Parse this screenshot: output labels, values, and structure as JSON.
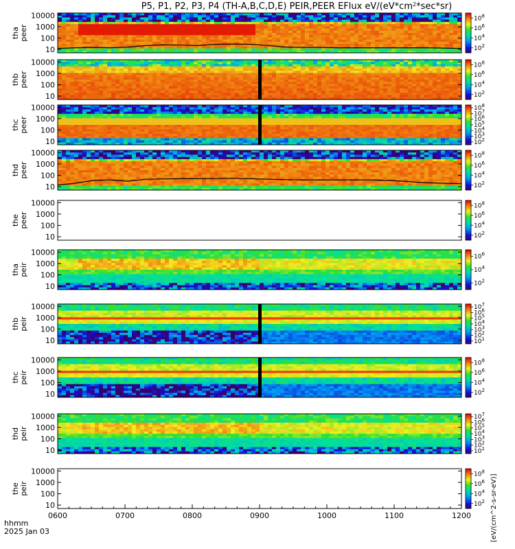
{
  "title": "P5, P1, P2, P3, P4 (TH-A,B,C,D,E) PEIR,PEER EFlux eV/(eV*cm^2*sec*sr)",
  "title_parts": {
    "pre": "P5, P1, P2, P3, P4 (TH-A,B,C,D,E) PEIR,PEER EFlux eV/(eV*cm",
    "sup": "2",
    "post": "*sec*sr)"
  },
  "corner_label": {
    "line1": "hhmm",
    "line2": "2025 Jan 03"
  },
  "colorbar_side_label": "[eV/(cm^2-s-sr-eV)]",
  "colors": {
    "line": "#000000",
    "background": "#ffffff"
  },
  "chart_data": {
    "type": "heatmap",
    "x_axis": {
      "ticks": [
        "0600",
        "0700",
        "0800",
        "0900",
        "1000",
        "1100",
        "1200"
      ],
      "range": [
        "0600",
        "1200"
      ]
    },
    "y_axis": {
      "scale": "log",
      "ticks": [
        "10",
        "100",
        "1000",
        "10000"
      ],
      "unit": "eV"
    },
    "panels": [
      {
        "probe": "tha",
        "species": "peer",
        "cb_ticks": [
          [
            "10",
            "2"
          ],
          [
            "10",
            "4"
          ],
          [
            "10",
            "6"
          ],
          [
            "10",
            "8"
          ]
        ],
        "profile": "tha_e",
        "line": [
          12,
          14,
          15,
          14,
          16,
          22,
          25,
          24,
          22,
          28,
          30,
          28,
          22,
          16,
          15,
          15,
          14,
          14,
          14,
          14,
          14,
          14,
          13,
          12
        ]
      },
      {
        "probe": "thb",
        "species": "peer",
        "cb_ticks": [
          [
            "10",
            "2"
          ],
          [
            "10",
            "4"
          ],
          [
            "10",
            "6"
          ],
          [
            "10",
            "8"
          ]
        ],
        "profile": "thb_e",
        "gap": "0900"
      },
      {
        "probe": "thc",
        "species": "peer",
        "cb_ticks": [
          [
            "10",
            "2"
          ],
          [
            "10",
            "3"
          ],
          [
            "10",
            "4"
          ],
          [
            "10",
            "5"
          ],
          [
            "10",
            "6"
          ],
          [
            "10",
            "7"
          ],
          [
            "10",
            "8"
          ]
        ],
        "profile": "thc_e",
        "gap": "0900"
      },
      {
        "probe": "thd",
        "species": "peer",
        "cb_ticks": [
          [
            "10",
            "2"
          ],
          [
            "10",
            "4"
          ],
          [
            "10",
            "6"
          ],
          [
            "10",
            "8"
          ]
        ],
        "profile": "thd_e",
        "line": [
          14,
          20,
          35,
          40,
          30,
          45,
          48,
          50,
          50,
          52,
          55,
          50,
          45,
          42,
          40,
          40,
          40,
          40,
          38,
          35,
          28,
          22,
          20,
          18
        ]
      },
      {
        "probe": "the",
        "species": "peer",
        "cb_ticks": [
          [
            "10",
            "2"
          ],
          [
            "10",
            "4"
          ],
          [
            "10",
            "6"
          ],
          [
            "10",
            "8"
          ]
        ],
        "profile": "empty"
      },
      {
        "probe": "tha",
        "species": "peir",
        "cb_ticks": [
          [
            "10",
            "2"
          ],
          [
            "10",
            "4"
          ],
          [
            "10",
            "6"
          ]
        ],
        "profile": "tha_i"
      },
      {
        "probe": "thb",
        "species": "peir",
        "cb_ticks": [
          [
            "10",
            "1"
          ],
          [
            "10",
            "2"
          ],
          [
            "10",
            "3"
          ],
          [
            "10",
            "4"
          ],
          [
            "10",
            "5"
          ],
          [
            "10",
            "6"
          ],
          [
            "10",
            "7"
          ]
        ],
        "profile": "thb_i",
        "gap": "0900"
      },
      {
        "probe": "thc",
        "species": "peir",
        "cb_ticks": [
          [
            "10",
            "2"
          ],
          [
            "10",
            "4"
          ],
          [
            "10",
            "6"
          ],
          [
            "10",
            "8"
          ]
        ],
        "profile": "thc_i",
        "gap": "0900"
      },
      {
        "probe": "thd",
        "species": "peir",
        "cb_ticks": [
          [
            "10",
            "1"
          ],
          [
            "10",
            "2"
          ],
          [
            "10",
            "3"
          ],
          [
            "10",
            "4"
          ],
          [
            "10",
            "5"
          ],
          [
            "10",
            "6"
          ],
          [
            "10",
            "7"
          ]
        ],
        "profile": "thd_i"
      },
      {
        "probe": "the",
        "species": "peir",
        "cb_ticks": [
          [
            "10",
            "2"
          ],
          [
            "10",
            "4"
          ],
          [
            "10",
            "6"
          ],
          [
            "10",
            "8"
          ]
        ],
        "profile": "empty"
      }
    ]
  }
}
